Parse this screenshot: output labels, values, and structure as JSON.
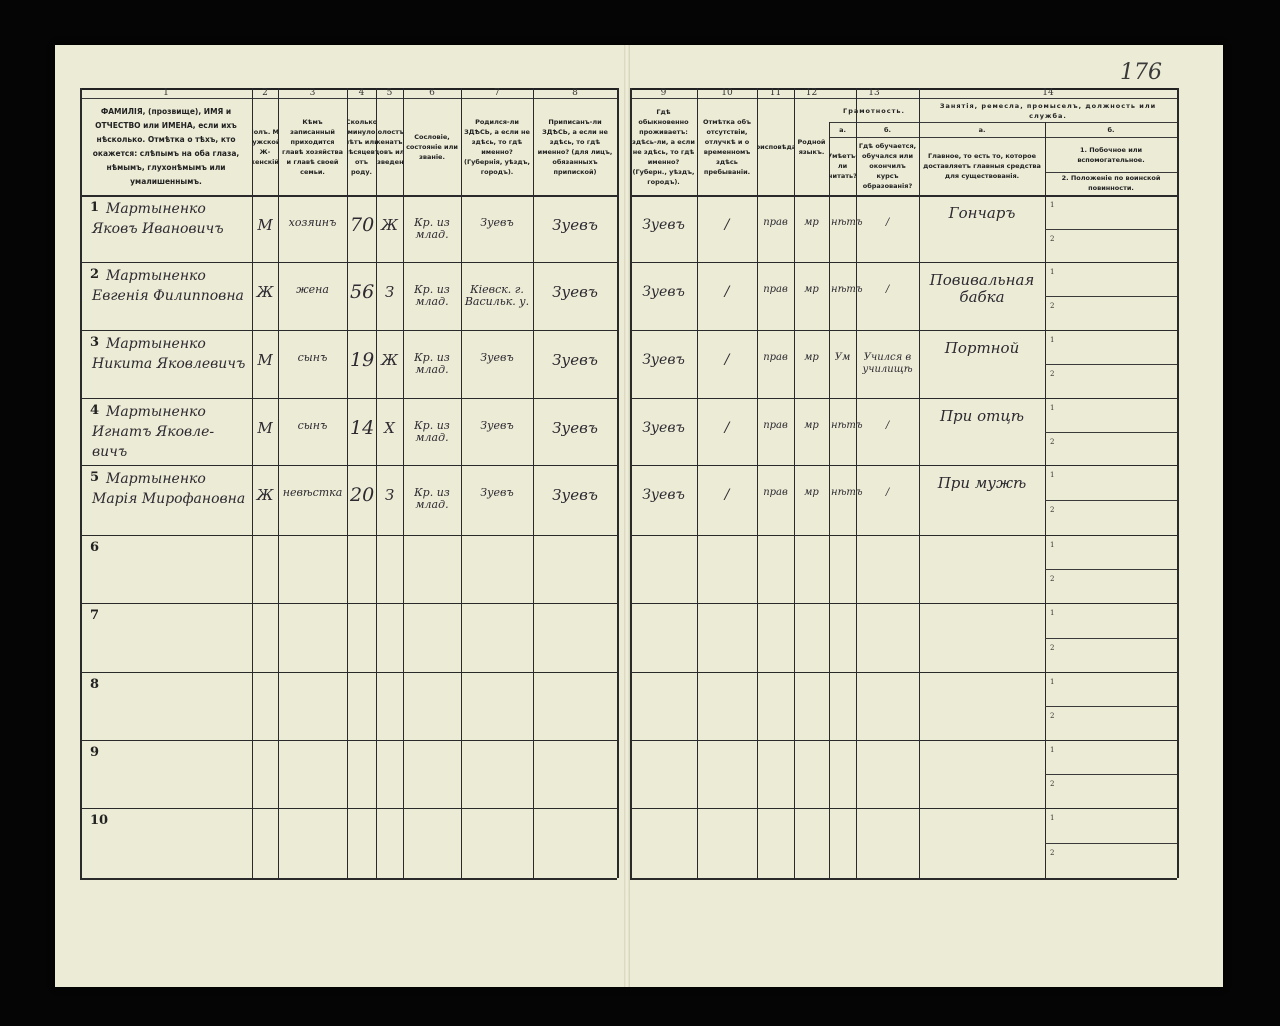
{
  "page_number": "176",
  "left_page": {
    "column_numbers": [
      "1",
      "2",
      "3",
      "4",
      "5",
      "6",
      "7",
      "8"
    ],
    "headers": [
      "ФАМИЛІЯ, (прозвище), ИМЯ и ОТЧЕСТВО или ИМЕНА, если ихъ нѣсколько. Отмѣтка о тѣхъ, кто окажется: слѣпымъ на оба глаза, нѣмымъ, глухонѣмымъ или умалишеннымъ.",
      "Полъ. М-мужской. Ж-женскій.",
      "Кѣмъ записанный приходится главѣ хозяйства и главѣ своей семьи.",
      "Сколько минуло лѣтъ или мѣсяцевъ отъ роду.",
      "Холостъ, женатъ, вдовъ или разведенъ.",
      "Сословіе, состояніе или званіе.",
      "Родился-ли ЗДѢСЬ, а если не здѣсь, то гдѣ именно? (Губернія, уѣздъ, городъ).",
      "Приписанъ-ли ЗДѢСЬ, а если не здѣсь, то гдѣ именно? (для лицъ, обязанныхъ припиской)"
    ],
    "rows": [
      {
        "num": "1",
        "name": [
          "Мартыненко",
          "Яковъ Ивановичъ"
        ],
        "sex": "М",
        "relation": "хозяинъ",
        "age": "70",
        "marital": "Ж",
        "estate": "Кр. из млад.",
        "born": "Зуевъ",
        "registered": "Зуевъ"
      },
      {
        "num": "2",
        "name": [
          "Мартыненко",
          "Евгенія Филипповна"
        ],
        "sex": "Ж",
        "relation": "жена",
        "age": "56",
        "marital": "З",
        "estate": "Кр. из млад.",
        "born": "Кіевск. г. Васильк. у.",
        "registered": "Зуевъ"
      },
      {
        "num": "3",
        "name": [
          "Мартыненко",
          "Никита Яковлевичъ"
        ],
        "sex": "М",
        "relation": "сынъ",
        "age": "19",
        "marital": "Ж",
        "estate": "Кр. из млад.",
        "born": "Зуевъ",
        "registered": "Зуевъ"
      },
      {
        "num": "4",
        "name": [
          "Мартыненко",
          "Игнатъ Яковле-",
          "вичъ"
        ],
        "sex": "М",
        "relation": "сынъ",
        "age": "14",
        "marital": "Х",
        "estate": "Кр. из млад.",
        "born": "Зуевъ",
        "registered": "Зуевъ"
      },
      {
        "num": "5",
        "name": [
          "Мартыненко",
          "Марія Мирофановна"
        ],
        "sex": "Ж",
        "relation": "невѣстка",
        "age": "20",
        "marital": "З",
        "estate": "Кр. из млад.",
        "born": "Зуевъ",
        "registered": "Зуевъ"
      },
      {
        "num": "6"
      },
      {
        "num": "7"
      },
      {
        "num": "8"
      },
      {
        "num": "9"
      },
      {
        "num": "10"
      }
    ]
  },
  "right_page": {
    "column_numbers": [
      "9",
      "10",
      "11",
      "12",
      "13",
      "14"
    ],
    "headers": {
      "c9": "Гдѣ обыкновенно проживаетъ: здѣсь-ли, а если не здѣсь, то гдѣ именно? (Губерн., уѣздъ, городъ).",
      "c10": "Отмѣтка объ отсутствіи, отлучкѣ и о временномъ здѣсь пребываніи.",
      "c11": "Вѣроисповѣданіе.",
      "c12": "Родной языкъ.",
      "c13": "Грамотность.",
      "c13a_letter": "а.",
      "c13a": "Умѣетъ-ли читать?",
      "c13b_letter": "б.",
      "c13b": "Гдѣ обучается, обучался или окончилъ курсъ образованія?",
      "c14": "Занятія, ремесла, промыселъ, должность или служба.",
      "c14a_letter": "а.",
      "c14a": "Главное, то есть то, которое доставляетъ главныя средства для существованія.",
      "c14b_letter": "б.",
      "c14b1": "1. Побочное или вспомогательное.",
      "c14b2": "2. Положеніе по воинской повинности."
    },
    "sub_labels": [
      "1",
      "2"
    ],
    "rows": [
      {
        "residence": "Зуевъ",
        "absence": "/",
        "religion": "прав",
        "language": "мр",
        "literate": "нѣтъ",
        "education": "/",
        "occupation": "Гончаръ"
      },
      {
        "residence": "Зуевъ",
        "absence": "/",
        "religion": "прав",
        "language": "мр",
        "literate": "нѣтъ",
        "education": "/",
        "occupation": "Повивальная бабка"
      },
      {
        "residence": "Зуевъ",
        "absence": "/",
        "religion": "прав",
        "language": "мр",
        "literate": "Ум",
        "education": "Учился в училищѣ",
        "occupation": "Портной"
      },
      {
        "residence": "Зуевъ",
        "absence": "/",
        "religion": "прав",
        "language": "мр",
        "literate": "нѣтъ",
        "education": "/",
        "occupation": "При отцѣ"
      },
      {
        "residence": "Зуевъ",
        "absence": "/",
        "religion": "прав",
        "language": "мр",
        "literate": "нѣтъ",
        "education": "/",
        "occupation": "При мужѣ"
      },
      {},
      {},
      {},
      {},
      {}
    ]
  }
}
